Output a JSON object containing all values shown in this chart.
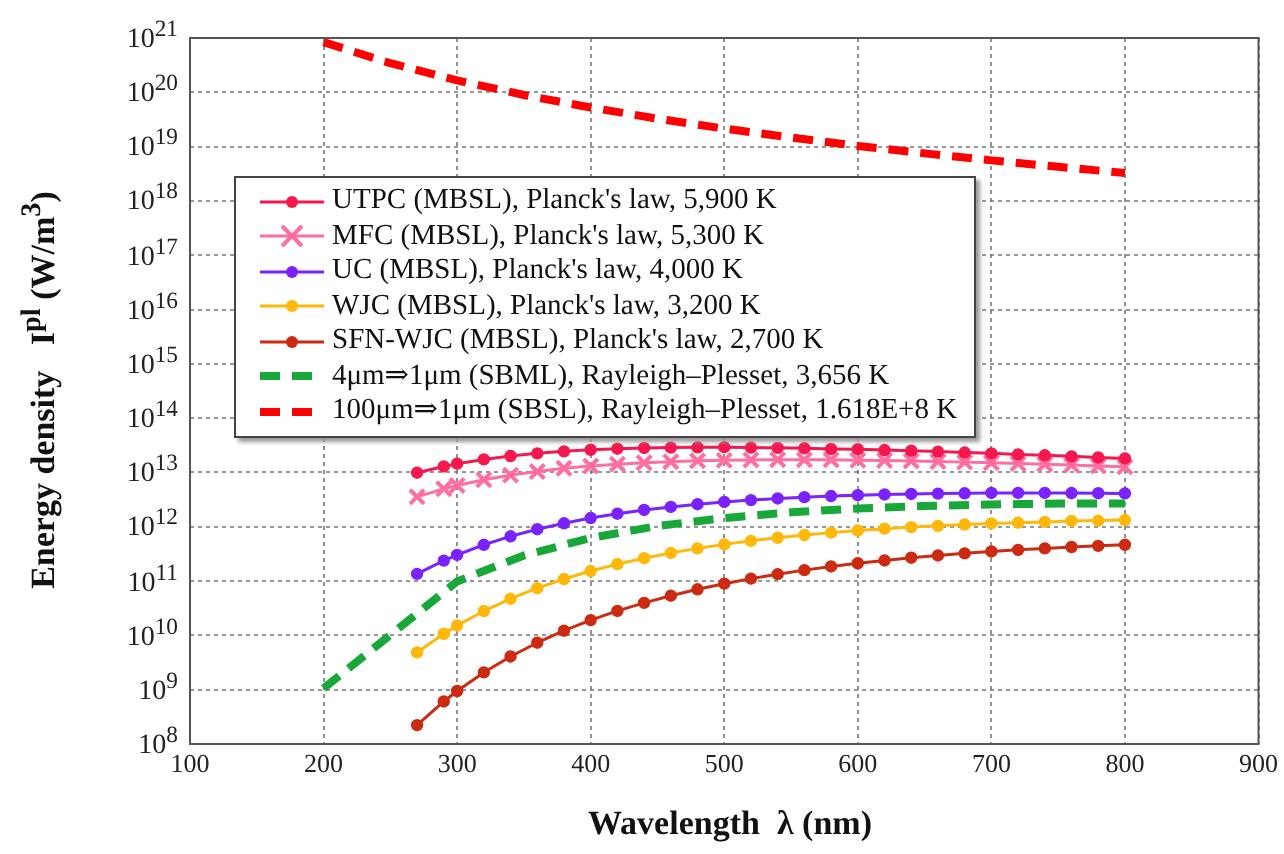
{
  "chart_data": {
    "type": "line",
    "xlabel": "Wavelength  λ (nm)",
    "ylabel": "Energy density   I$^{pl}$ (W/m$^{3}$)",
    "xlim": [
      100,
      900
    ],
    "xticks": [
      100,
      200,
      300,
      400,
      500,
      600,
      700,
      800,
      900
    ],
    "ylim": [
      100000000.0,
      1e+21
    ],
    "log": "y",
    "yticks": [
      {
        "value": 100000000.0,
        "label": "10$^{8}$"
      },
      {
        "value": 1000000000.0,
        "label": "10$^{9}$"
      },
      {
        "value": 10000000000.0,
        "label": "10$^{10}$"
      },
      {
        "value": 100000000000.0,
        "label": "10$^{11}$"
      },
      {
        "value": 1000000000000.0,
        "label": "10$^{12}$"
      },
      {
        "value": 10000000000000.0,
        "label": "10$^{13}$"
      },
      {
        "value": 100000000000000.0,
        "label": "10$^{14}$"
      },
      {
        "value": 1000000000000000.0,
        "label": "10$^{15}$"
      },
      {
        "value": 1e+16,
        "label": "10$^{16}$"
      },
      {
        "value": 1e+17,
        "label": "10$^{17}$"
      },
      {
        "value": 1e+18,
        "label": "10$^{18}$"
      },
      {
        "value": 1e+19,
        "label": "10$^{19}$"
      },
      {
        "value": 1e+20,
        "label": "10$^{20}$"
      },
      {
        "value": 1e+21,
        "label": "10$^{21}$"
      }
    ],
    "grid": true,
    "legend": "top left",
    "series": [
      {
        "name": "UTPC (MBSL), Planck's law, 5,900 K",
        "color": "#f5184f",
        "marker": "circle",
        "line_style": "solid",
        "x": [
          270,
          290,
          300,
          320,
          340,
          360,
          380,
          400,
          420,
          440,
          460,
          480,
          500,
          520,
          540,
          560,
          580,
          600,
          620,
          640,
          660,
          680,
          700,
          720,
          740,
          760,
          780,
          800
        ],
        "values": [
          9900000000000.0,
          12900000000000.0,
          14500000000000.0,
          17400000000000.0,
          20100000000000.0,
          22500000000000.0,
          24500000000000.0,
          26200000000000.0,
          27400000000000.0,
          28300000000000.0,
          28800000000000.0,
          29100000000000.0,
          29200000000000.0,
          28800000000000.0,
          28400000000000.0,
          28000000000000.0,
          27100000000000.0,
          26800000000000.0,
          25900000000000.0,
          25100000000000.0,
          24200000000000.0,
          23300000000000.0,
          22500000000000.0,
          21500000000000.0,
          20700000000000.0,
          19800000000000.0,
          18900000000000.0,
          18100000000000.0
        ]
      },
      {
        "name": "MFC (MBSL), Planck's law, 5,300 K",
        "color": "#ff6e9e",
        "marker": "cross",
        "line_style": "solid",
        "x": [
          270,
          290,
          300,
          320,
          340,
          360,
          380,
          400,
          420,
          440,
          460,
          480,
          500,
          520,
          540,
          560,
          580,
          600,
          620,
          640,
          660,
          680,
          700,
          720,
          740,
          760,
          780,
          800
        ],
        "values": [
          3560000000000.0,
          4990000000000.0,
          5750000000000.0,
          7350000000000.0,
          8930000000000.0,
          10400000000000.0,
          11900000000000.0,
          13100000000000.0,
          14200000000000.0,
          15100000000000.0,
          15800000000000.0,
          16400000000000.0,
          16700000000000.0,
          17000000000000.0,
          17200000000000.0,
          17100000000000.0,
          17100000000000.0,
          16800000000000.0,
          16600000000000.0,
          16300000000000.0,
          15900000000000.0,
          15500000000000.0,
          15100000000000.0,
          14600000000000.0,
          14200000000000.0,
          13700000000000.0,
          13200000000000.0,
          12700000000000.0
        ]
      },
      {
        "name": "UC (MBSL), Planck's law, 4,000 K",
        "color": "#7a22ff",
        "marker": "circle",
        "line_style": "solid",
        "x": [
          270,
          290,
          300,
          320,
          340,
          360,
          380,
          400,
          420,
          440,
          460,
          480,
          500,
          520,
          540,
          560,
          580,
          600,
          620,
          640,
          660,
          680,
          700,
          720,
          740,
          760,
          780,
          800
        ],
        "values": [
          136000000000.0,
          238000000000.0,
          304000000000.0,
          466000000000.0,
          667000000000.0,
          902000000000.0,
          1160000000000.0,
          1450000000000.0,
          1740000000000.0,
          2040000000000.0,
          2320000000000.0,
          2600000000000.0,
          2860000000000.0,
          3100000000000.0,
          3320000000000.0,
          3510000000000.0,
          3680000000000.0,
          3810000000000.0,
          3930000000000.0,
          4020000000000.0,
          4080000000000.0,
          4130000000000.0,
          4190000000000.0,
          4200000000000.0,
          4200000000000.0,
          4180000000000.0,
          4150000000000.0,
          4120000000000.0
        ]
      },
      {
        "name": "WJC (MBSL), Planck's law, 3,200 K",
        "color": "#ffb80a",
        "marker": "circle",
        "line_style": "solid",
        "x": [
          270,
          290,
          300,
          320,
          340,
          360,
          380,
          400,
          420,
          440,
          460,
          480,
          500,
          520,
          540,
          560,
          580,
          600,
          620,
          640,
          660,
          680,
          700,
          720,
          740,
          760,
          780,
          800
        ],
        "values": [
          4860000000.0,
          10700000000.0,
          15200000000.0,
          28100000000.0,
          47400000000.0,
          74100000000.0,
          109000000000.0,
          153000000000.0,
          205000000000.0,
          264000000000.0,
          329000000000.0,
          400000000000.0,
          474000000000.0,
          551000000000.0,
          628000000000.0,
          705000000000.0,
          780000000000.0,
          853000000000.0,
          923000000000.0,
          986000000000.0,
          1040000000000.0,
          1100000000000.0,
          1150000000000.0,
          1190000000000.0,
          1230000000000.0,
          1280000000000.0,
          1300000000000.0,
          1330000000000.0
        ]
      },
      {
        "name": "SFN-WJC (MBSL), Planck's law, 2,700 K",
        "color": "#cc2a12",
        "marker": "circle",
        "line_style": "solid",
        "x": [
          270,
          290,
          300,
          320,
          340,
          360,
          380,
          400,
          420,
          440,
          460,
          480,
          500,
          520,
          540,
          560,
          580,
          600,
          620,
          640,
          660,
          680,
          700,
          720,
          740,
          760,
          780,
          800
        ],
        "values": [
          223000000.0,
          607000000.0,
          946000000.0,
          2080000000.0,
          4090000000.0,
          7330000000.0,
          12200000000.0,
          19100000000.0,
          28200000000.0,
          39700000000.0,
          53800000000.0,
          70500000000.0,
          89500000000.0,
          111000000000.0,
          134000000000.0,
          159000000000.0,
          186000000000.0,
          213000000000.0,
          240000000000.0,
          269000000000.0,
          296000000000.0,
          324000000000.0,
          351000000000.0,
          376000000000.0,
          400000000000.0,
          424000000000.0,
          445000000000.0,
          466000000000.0
        ]
      },
      {
        "name": "4μm⇒1μm (SBML), Rayleigh–Plesset, 3,656 K",
        "color": "#18a83a",
        "marker": "none",
        "line_style": "dashed",
        "x": [
          200,
          300,
          350,
          400,
          450,
          500,
          550,
          600,
          650,
          700,
          750,
          800
        ],
        "values": [
          1060000000.0,
          98400000000.0,
          297000000000.0,
          621000000000.0,
          1030000000000.0,
          1450000000000.0,
          1850000000000.0,
          2170000000000.0,
          2410000000000.0,
          2580000000000.0,
          2670000000000.0,
          2690000000000.0
        ]
      },
      {
        "name": "100μm⇒1μm (SBSL), Rayleigh–Plesset, 1.618E+8 K",
        "color": "#ff0000",
        "marker": "none",
        "line_style": "dashed",
        "x": [
          200,
          250,
          300,
          350,
          400,
          450,
          500,
          550,
          600,
          650,
          700,
          750,
          800
        ],
        "values": [
          8.38e+20,
          3.43e+20,
          1.66e+20,
          8.93e+19,
          5.24e+19,
          3.27e+19,
          2.15e+19,
          1.47e+19,
          1.03e+19,
          7.51e+18,
          5.58e+18,
          4.24e+18,
          3.27e+18
        ]
      }
    ]
  }
}
